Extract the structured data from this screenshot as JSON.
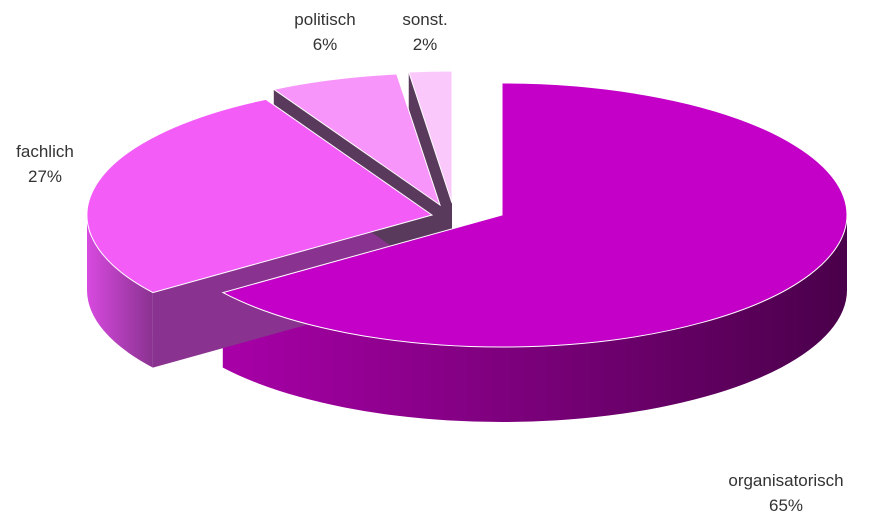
{
  "chart_data": {
    "type": "pie",
    "title": "",
    "slices": [
      {
        "label": "organisatorisch",
        "value": 65,
        "value_label": "65%",
        "color": "#c400c8",
        "side_color": "#7a0078"
      },
      {
        "label": "fachlich",
        "value": 27,
        "value_label": "27%",
        "color": "#f45cf8",
        "side_color": "#8a3290"
      },
      {
        "label": "politisch",
        "value": 6,
        "value_label": "6%",
        "color": "#f895fa",
        "side_color": "#5a3a5c"
      },
      {
        "label": "sonst.",
        "value": 2,
        "value_label": "2%",
        "color": "#fac8fb",
        "side_color": "#5a3a5c"
      }
    ],
    "style": "3d-exploded",
    "legend": "none",
    "data_labels": "outside"
  }
}
